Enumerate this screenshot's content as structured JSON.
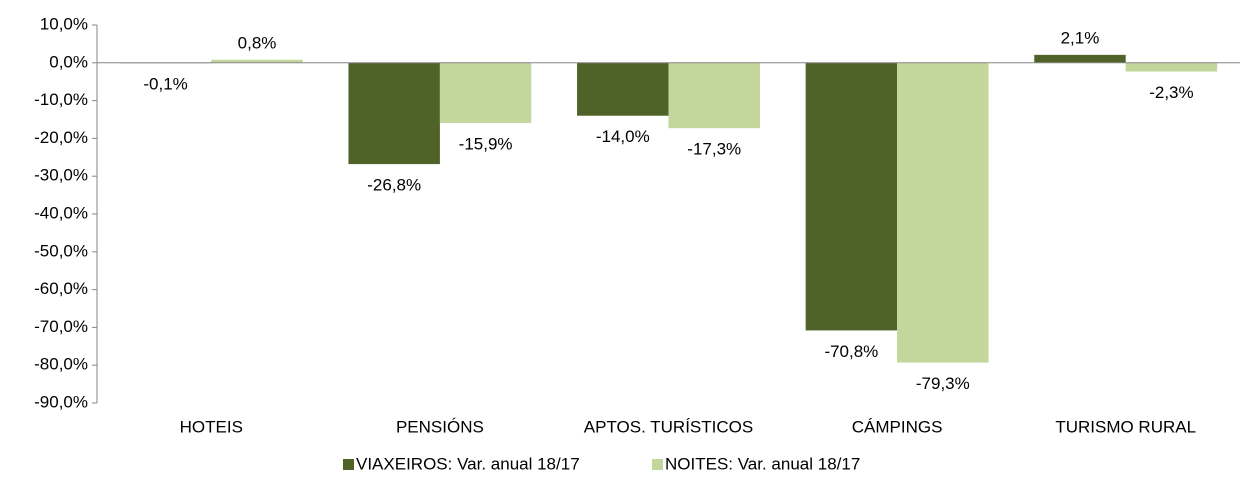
{
  "chart_data": {
    "type": "bar",
    "categories": [
      "HOTEIS",
      "PENSIÓNS",
      "APTOS. TURÍSTICOS",
      "CÁMPINGS",
      "TURISMO RURAL"
    ],
    "series": [
      {
        "name": "VIAXEIROS: Var. anual 18/17",
        "color": "#4f6228",
        "values": [
          -0.1,
          -26.8,
          -14.0,
          -70.8,
          2.1
        ],
        "value_labels": [
          "-0,1%",
          "-26,8%",
          "-14,0%",
          "-70,8%",
          "2,1%"
        ]
      },
      {
        "name": "NOITES: Var. anual 18/17",
        "color": "#c3d69b",
        "values": [
          0.8,
          -15.9,
          -17.3,
          -79.3,
          -2.3
        ],
        "value_labels": [
          "0,8%",
          "-15,9%",
          "-17,3%",
          "-79,3%",
          "-2,3%"
        ]
      }
    ],
    "ylim": [
      -90,
      10
    ],
    "yticks": [
      {
        "value": 10,
        "label": "10,0%"
      },
      {
        "value": 0,
        "label": "0,0%"
      },
      {
        "value": -10,
        "label": "-10,0%"
      },
      {
        "value": -20,
        "label": "-20,0%"
      },
      {
        "value": -30,
        "label": "-30,0%"
      },
      {
        "value": -40,
        "label": "-40,0%"
      },
      {
        "value": -50,
        "label": "-50,0%"
      },
      {
        "value": -60,
        "label": "-60,0%"
      },
      {
        "value": -70,
        "label": "-70,0%"
      },
      {
        "value": -80,
        "label": "-80,0%"
      },
      {
        "value": -90,
        "label": "-90,0%"
      }
    ],
    "legend": "bottom"
  }
}
